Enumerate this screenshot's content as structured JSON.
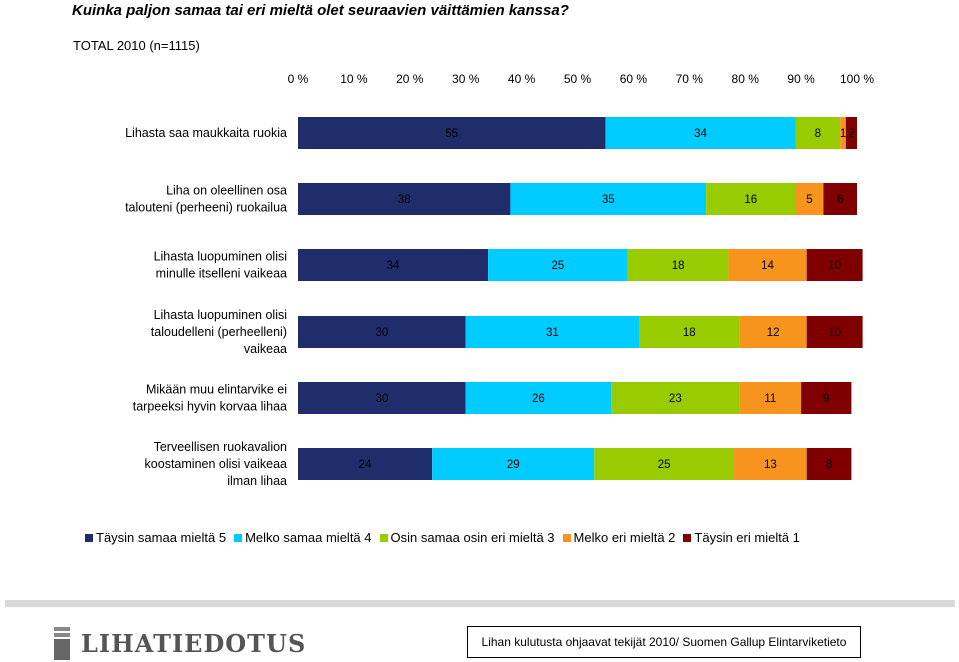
{
  "header": {
    "title": "Kuinka paljon samaa tai eri mieltä olet seuraavien väittämien kanssa?",
    "subtitle": "TOTAL 2010 (n=1115)"
  },
  "chart_data": {
    "type": "bar",
    "orientation": "horizontal",
    "stacked": true,
    "xlim": [
      0,
      100
    ],
    "x_ticks": [
      "0 %",
      "10 %",
      "20 %",
      "30 %",
      "40 %",
      "50 %",
      "60 %",
      "70 %",
      "80 %",
      "90 %",
      "100 %"
    ],
    "categories": [
      [
        "Lihasta saa maukkaita ruokia"
      ],
      [
        "Liha on oleellinen osa",
        "talouteni (perheeni) ruokailua"
      ],
      [
        "Lihasta luopuminen olisi",
        "minulle itselleni vaikeaa"
      ],
      [
        "Lihasta luopuminen olisi",
        "taloudelleni (perheelleni)",
        "vaikeaa"
      ],
      [
        "Mikään muu elintarvike ei",
        "tarpeeksi hyvin korvaa lihaa"
      ],
      [
        "Terveellisen ruokavalion",
        "koostaminen olisi vaikeaa",
        "ilman lihaa"
      ]
    ],
    "series": [
      {
        "name": "Täysin samaa mieltä 5",
        "color": "#1f2d6b",
        "values": [
          55,
          38,
          34,
          30,
          30,
          24
        ]
      },
      {
        "name": "Melko samaa mieltä 4",
        "color": "#00ccff",
        "values": [
          34,
          35,
          25,
          31,
          26,
          29
        ]
      },
      {
        "name": "Osin samaa osin eri mieltä 3",
        "color": "#99cc00",
        "values": [
          8,
          16,
          18,
          18,
          23,
          25
        ]
      },
      {
        "name": "Melko eri mieltä 2",
        "color": "#f7941d",
        "values": [
          1,
          5,
          14,
          12,
          11,
          13
        ]
      },
      {
        "name": "Täysin eri mieltä 1",
        "color": "#800000",
        "values": [
          2,
          6,
          10,
          10,
          9,
          8
        ]
      }
    ]
  },
  "footer": {
    "logo_text": "LIHATIEDOTUS",
    "source": "Lihan kulutusta ohjaavat tekijät 2010/ Suomen Gallup Elintarviketieto"
  }
}
